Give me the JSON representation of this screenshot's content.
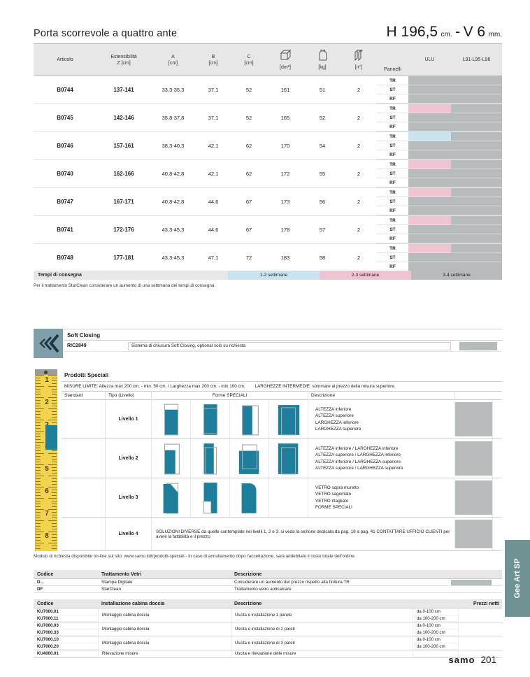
{
  "page": {
    "title": "Porta scorrevole a quattro ante",
    "dimension": {
      "h_value": "H 196,5",
      "h_unit": "cm.",
      "separator": "-",
      "v_value": "V 6",
      "v_unit": "mm."
    },
    "footer_brand": "samo",
    "footer_page": "201",
    "side_tab_label": "Gee Art SP"
  },
  "colors": {
    "accent_teal": "#1d7f9b",
    "pink": "#f0c3d2",
    "light_blue": "#c9e4ee",
    "column_gray": "#b6bcbc",
    "header_gray": "#e7e7e7",
    "ruler_yellow": "#f2d34b",
    "soft_icon_bg": "#7f9fac",
    "side_tab": "#6f9292"
  },
  "icons": {
    "dm2": "box-icon",
    "kg": "weight-icon",
    "n": "panels-icon",
    "soft_closing": "chevrons-left-icon",
    "ruler": "measuring-tape-icon"
  },
  "main_table": {
    "headers": {
      "articolo": "Articolo",
      "estensibilita_line1": "Estensibilità",
      "estensibilita_line2": "Z [cm]",
      "a_line1": "A",
      "a_line2": "[cm]",
      "b_line1": "B",
      "b_line2": "[cm]",
      "c_line1": "C",
      "c_line2": "[cm]",
      "dm2_label": "[dm²]",
      "kg_label": "[kg]",
      "n_label": "[n°]",
      "pannelli": "Pannelli",
      "ulu": "ULU",
      "l91": "L91-L95-L96"
    },
    "panel_types": [
      "TR",
      "ST",
      "RF"
    ],
    "rows": [
      {
        "articolo": "B0744",
        "estensibilita": "137-141",
        "a": "33,3-35,3",
        "b": "37,1",
        "c": "52",
        "dm2": "161",
        "kg": "51",
        "n": "2",
        "bars": {
          "TR": null,
          "ST": null,
          "RF": null
        }
      },
      {
        "articolo": "B0745",
        "estensibilita": "142-146",
        "a": "35,8-37,8",
        "b": "37,1",
        "c": "52",
        "dm2": "165",
        "kg": "52",
        "n": "2",
        "bars": {
          "TR": "pink",
          "ST": null,
          "RF": null
        }
      },
      {
        "articolo": "B0746",
        "estensibilita": "157-161",
        "a": "38,3-40,3",
        "b": "42,1",
        "c": "62",
        "dm2": "170",
        "kg": "54",
        "n": "2",
        "bars": {
          "TR": "blue",
          "ST": null,
          "RF": null
        }
      },
      {
        "articolo": "B0740",
        "estensibilita": "162-166",
        "a": "40,8-42,8",
        "b": "42,1",
        "c": "62",
        "dm2": "172",
        "kg": "55",
        "n": "2",
        "bars": {
          "TR": "pink",
          "ST": null,
          "RF": null
        }
      },
      {
        "articolo": "B0747",
        "estensibilita": "167-171",
        "a": "40,8-42,8",
        "b": "44,6",
        "c": "67",
        "dm2": "173",
        "kg": "56",
        "n": "2",
        "bars": {
          "TR": "pink",
          "ST": null,
          "RF": null
        }
      },
      {
        "articolo": "B0741",
        "estensibilita": "172-176",
        "a": "43,3-45,3",
        "b": "44,6",
        "c": "67",
        "dm2": "178",
        "kg": "57",
        "n": "2",
        "bars": {
          "TR": "pink",
          "ST": null,
          "RF": null
        }
      },
      {
        "articolo": "B0748",
        "estensibilita": "177-181",
        "a": "43,3-45,3",
        "b": "47,1",
        "c": "72",
        "dm2": "183",
        "kg": "58",
        "n": "2",
        "bars": {
          "TR": "pink",
          "ST": null,
          "RF": null
        }
      }
    ]
  },
  "delivery": {
    "label": "Tempi di consegna",
    "segments": [
      {
        "label": "1-2 settimane",
        "color": "blue"
      },
      {
        "label": "2-3 settimane",
        "color": "pink"
      },
      {
        "label": "3-4 settimane",
        "color": "gray"
      }
    ],
    "note": "Per il trattamento StarClean considerare un aumento di una settimana dei tempi di consegna."
  },
  "soft_closing": {
    "title": "Soft Closing",
    "code": "RIC2849",
    "description": "Sistema di chiusura Soft Closing, optional solo su richiesta"
  },
  "prodotti_speciali": {
    "title": "Prodotti Speciali",
    "misure_limite": "MISURE LIMITE: Altezza max 200 cm. - min. 50 cm. / Larghezza max 200 cm. - min 100 cm.",
    "larghezze_intermedie": "LARGHEZZE INTERMEDIE: sommare al prezzo della misura superiore.",
    "headers": {
      "standard": "Standard",
      "tipo": "Tipo (Livello)",
      "forme": "Forme SPECIALI",
      "descrizione": "Descrizione"
    },
    "ruler_numbers": [
      "1",
      "2",
      "3",
      "4",
      "5",
      "6",
      "7",
      "8"
    ],
    "levels": [
      {
        "label": "Livello 1",
        "shapes": [
          "altezza-inferiore-shape",
          "altezza-superiore-shape",
          "larghezza-inferiore-shape",
          "larghezza-superiore-shape"
        ],
        "descrizione": [
          "ALTEZZA inferiore",
          "ALTEZZA superiore",
          "LARGHEZZA inferiore",
          "LARGHEZZA superiore"
        ]
      },
      {
        "label": "Livello 2",
        "shapes": [
          "altezza-inf-larghezza-inf-shape",
          "altezza-sup-larghezza-inf-shape",
          "altezza-inf-larghezza-sup-shape",
          "altezza-sup-larghezza-sup-shape"
        ],
        "descrizione": [
          "ALTEZZA inferiore / LARGHEZZA inferiore",
          "ALTEZZA superiore / LARGHEZZA inferiore",
          "ALTEZZA inferiore / LARGHEZZA superiore",
          "ALTEZZA superiore / LARGHEZZA superiore"
        ]
      },
      {
        "label": "Livello 3",
        "shapes": [
          "vetro-sopra-muretto-shape",
          "vetro-sagomato-shape",
          "vetro-ritagliato-shape",
          ""
        ],
        "descrizione": [
          "VETRO sopra muretto",
          "VETRO sagomato",
          "VETRO ritagliato",
          "FORME SPECIALI"
        ]
      },
      {
        "label": "Livello 4",
        "text": "SOLUZIONI DIVERSE da quelle contemplate nei livelli 1, 2 e 3: si veda la sezione dedicata da pag. 19 a pag. 41 CONTATTARE UFFICIO CLIENTI per avere la fattibilità e il prezzo"
      }
    ],
    "note": "Modulo di richiesta disponibile on-line sul sito: www.samo.it/it/prodotti-speciali - In caso di annullamento dopo l'accettazione, sarà addebitato il costo totale dell'ordine."
  },
  "vetri_table": {
    "headers": [
      "Codice",
      "Trattamento Vetri",
      "Descrizione"
    ],
    "rows": [
      {
        "codice": "D...",
        "trattamento": "Stampa Digitale",
        "descrizione": "Considerare un aumento del prezzo rispetto alla finitura TR",
        "gray_cell": true
      },
      {
        "codice": "DF",
        "trattamento": "StarClean",
        "descrizione": "Trattamento vetro anticalcare",
        "gray_cell": false
      }
    ]
  },
  "installazione_table": {
    "headers": [
      "Codice",
      "Installazione cabina doccia",
      "Descrizione",
      "Prezzi netti"
    ],
    "groups": [
      {
        "codici": [
          "KU7000.01",
          "KU7000.11"
        ],
        "installazione": "Montaggio cabina doccia",
        "descrizione": "Uscita e installazione 1 parete",
        "ranges": [
          "da 0-100 cm",
          "da 100-200 cm"
        ]
      },
      {
        "codici": [
          "KU7000.03",
          "KU7000.33"
        ],
        "installazione": "Montaggio cabina doccia",
        "descrizione": "Uscita e installazione di 2 pareti",
        "ranges": [
          "da 0-100 cm",
          "da 100-200 cm"
        ]
      },
      {
        "codici": [
          "KU7000.10",
          "KU7000.20"
        ],
        "installazione": "Montaggio cabina doccia",
        "descrizione": "Uscita e installazione di 3 pareti",
        "ranges": [
          "da 0-100 cm",
          "da 100-200 cm"
        ]
      },
      {
        "codici": [
          "KU4000.01"
        ],
        "installazione": "Rilevazione misure",
        "descrizione": "Uscita e rilevazione delle misure",
        "ranges": [
          ""
        ]
      }
    ]
  }
}
